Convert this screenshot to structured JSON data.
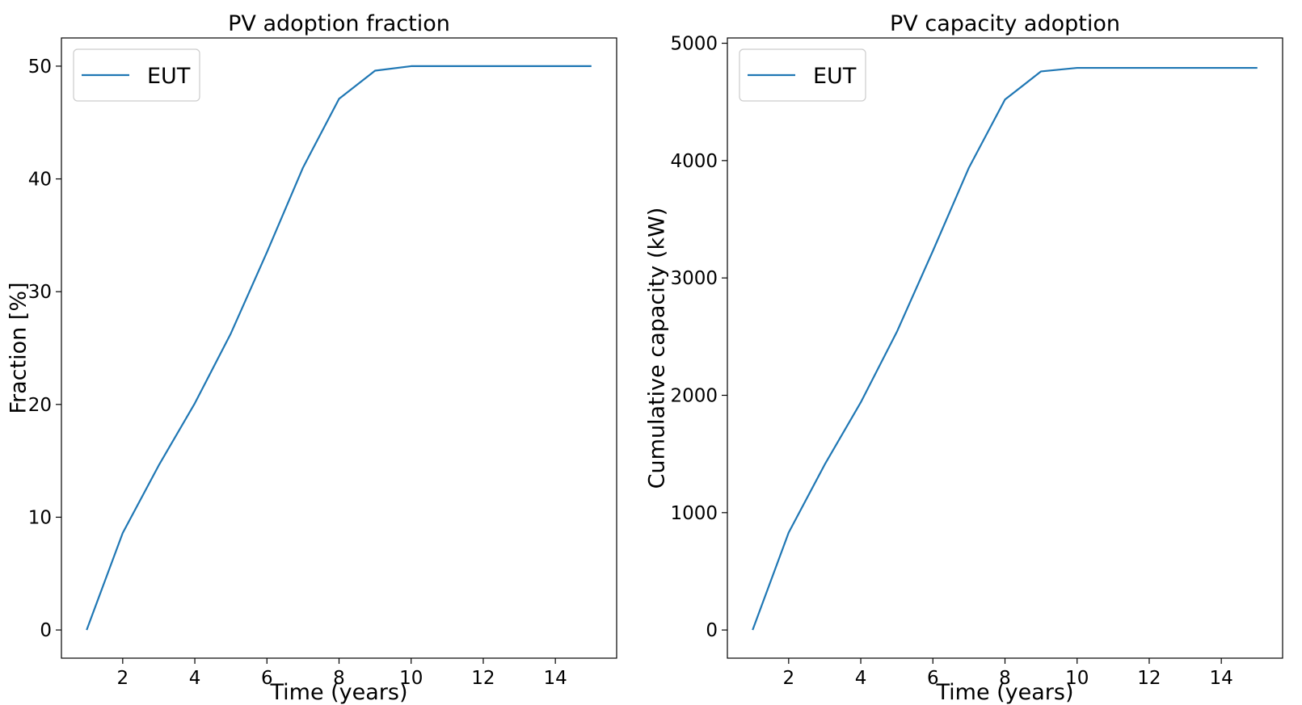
{
  "chart_data": [
    {
      "type": "line",
      "title": "PV adoption fraction",
      "xlabel": "Time (years)",
      "ylabel": "Fraction [%]",
      "xlim": [
        0.3,
        15.7
      ],
      "ylim": [
        -2.5,
        52.5
      ],
      "xticks": [
        2,
        4,
        6,
        8,
        10,
        12,
        14
      ],
      "yticks": [
        0,
        10,
        20,
        30,
        40,
        50
      ],
      "grid": false,
      "legend_position": "top-left",
      "series": [
        {
          "name": "EUT",
          "color": "#1f77b4",
          "x": [
            1,
            2,
            3,
            4,
            5,
            6,
            7,
            8,
            9,
            10,
            11,
            12,
            13,
            14,
            15
          ],
          "y": [
            0,
            8.6,
            14.6,
            20.1,
            26.3,
            33.5,
            41.0,
            47.1,
            49.6,
            50.0,
            50.0,
            50.0,
            50.0,
            50.0,
            50.0
          ]
        }
      ]
    },
    {
      "type": "line",
      "title": "PV capacity adoption",
      "xlabel": "Time (years)",
      "ylabel": "Cumulative capacity (kW)",
      "xlim": [
        0.3,
        15.7
      ],
      "ylim": [
        -240,
        5045
      ],
      "xticks": [
        2,
        4,
        6,
        8,
        10,
        12,
        14
      ],
      "yticks": [
        0,
        1000,
        2000,
        3000,
        4000,
        5000
      ],
      "grid": false,
      "legend_position": "top-left",
      "series": [
        {
          "name": "EUT",
          "color": "#1f77b4",
          "x": [
            1,
            2,
            3,
            4,
            5,
            6,
            7,
            8,
            9,
            10,
            11,
            12,
            13,
            14,
            15
          ],
          "y": [
            0,
            830,
            1410,
            1940,
            2540,
            3230,
            3940,
            4520,
            4760,
            4790,
            4790,
            4790,
            4790,
            4790,
            4790
          ]
        }
      ]
    }
  ]
}
